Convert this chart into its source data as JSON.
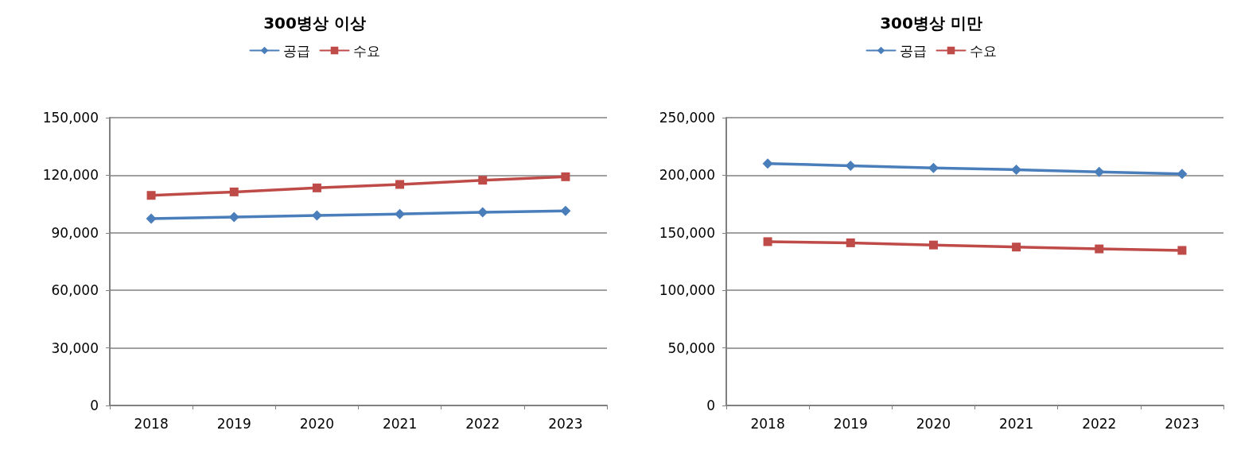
{
  "chart_data": [
    {
      "type": "line",
      "title": "300병상 이상",
      "categories": [
        "2018",
        "2019",
        "2020",
        "2021",
        "2022",
        "2023"
      ],
      "series": [
        {
          "name": "공급",
          "color": "#4a7ebb",
          "marker": "diamond",
          "values": [
            97400,
            98200,
            99000,
            99800,
            100700,
            101400
          ]
        },
        {
          "name": "수요",
          "color": "#be4b48",
          "marker": "square",
          "values": [
            109500,
            111300,
            113400,
            115200,
            117400,
            119200
          ]
        }
      ],
      "ylim": [
        0,
        150000
      ],
      "yticks": [
        {
          "value": 0,
          "label": "0"
        },
        {
          "value": 30000,
          "label": "30,000"
        },
        {
          "value": 60000,
          "label": "60,000"
        },
        {
          "value": 90000,
          "label": "90,000"
        },
        {
          "value": 120000,
          "label": "120,000"
        },
        {
          "value": 150000,
          "label": "150,000"
        }
      ],
      "grid": "y",
      "legend": "top",
      "line_style": "solid"
    },
    {
      "type": "line",
      "title": "300병상 미만",
      "categories": [
        "2018",
        "2019",
        "2020",
        "2021",
        "2022",
        "2023"
      ],
      "series": [
        {
          "name": "공급",
          "color": "#4a7ebb",
          "marker": "diamond",
          "values": [
            210100,
            208300,
            206400,
            204800,
            202900,
            201100
          ]
        },
        {
          "name": "수요",
          "color": "#be4b48",
          "marker": "square",
          "values": [
            142300,
            141300,
            139400,
            137600,
            136000,
            134700
          ]
        }
      ],
      "ylim": [
        0,
        250000
      ],
      "yticks": [
        {
          "value": 0,
          "label": "0"
        },
        {
          "value": 50000,
          "label": "50,000"
        },
        {
          "value": 100000,
          "label": "100,000"
        },
        {
          "value": 150000,
          "label": "150,000"
        },
        {
          "value": 200000,
          "label": "200,000"
        },
        {
          "value": 250000,
          "label": "250,000"
        }
      ],
      "grid": "y",
      "legend": "top",
      "line_style": "solid"
    }
  ]
}
